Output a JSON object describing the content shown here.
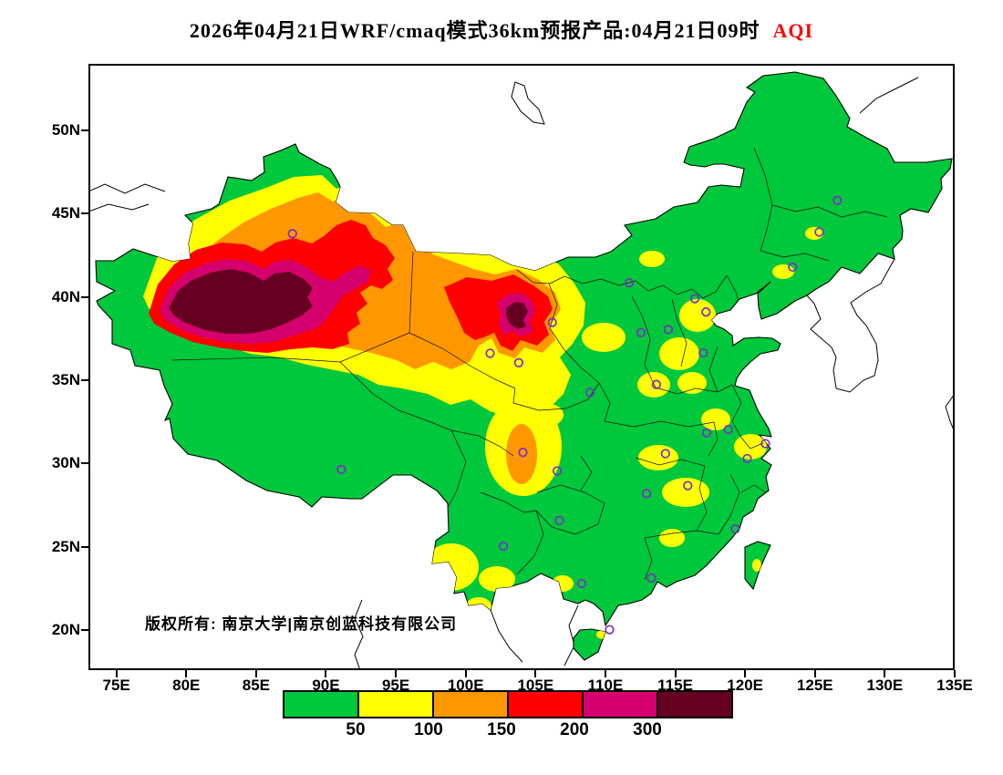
{
  "title": {
    "text": "2026年04月21日WRF/cmaq模式36km预报产品:04月21日09时",
    "suffix": "AQI"
  },
  "axes": {
    "lat_ticks": [
      {
        "label": "50N",
        "value": 50
      },
      {
        "label": "45N",
        "value": 45
      },
      {
        "label": "40N",
        "value": 40
      },
      {
        "label": "35N",
        "value": 35
      },
      {
        "label": "30N",
        "value": 30
      },
      {
        "label": "25N",
        "value": 25
      },
      {
        "label": "20N",
        "value": 20
      }
    ],
    "lon_ticks": [
      {
        "label": "75E",
        "value": 75
      },
      {
        "label": "80E",
        "value": 80
      },
      {
        "label": "85E",
        "value": 85
      },
      {
        "label": "90E",
        "value": 90
      },
      {
        "label": "95E",
        "value": 95
      },
      {
        "label": "100E",
        "value": 100
      },
      {
        "label": "105E",
        "value": 105
      },
      {
        "label": "110E",
        "value": 110
      },
      {
        "label": "115E",
        "value": 115
      },
      {
        "label": "120E",
        "value": 120
      },
      {
        "label": "125E",
        "value": 125
      },
      {
        "label": "130E",
        "value": 130
      },
      {
        "label": "135E",
        "value": 135
      }
    ]
  },
  "map": {
    "copyright": "版权所有: 南京大学|南京创蓝科技有限公司",
    "projection": {
      "lon_min": 73,
      "lon_max": 135,
      "lat_min": 17.6,
      "lat_max": 54
    },
    "city_markers": [
      [
        87.6,
        43.8
      ],
      [
        126.6,
        45.8
      ],
      [
        125.3,
        43.9
      ],
      [
        123.4,
        41.8
      ],
      [
        111.7,
        40.85
      ],
      [
        116.4,
        39.9
      ],
      [
        117.2,
        39.1
      ],
      [
        114.5,
        38.05
      ],
      [
        112.55,
        37.87
      ],
      [
        117.0,
        36.65
      ],
      [
        101.75,
        36.62
      ],
      [
        103.8,
        36.06
      ],
      [
        106.2,
        38.47
      ],
      [
        108.9,
        34.27
      ],
      [
        113.65,
        34.75
      ],
      [
        117.25,
        31.85
      ],
      [
        118.8,
        32.05
      ],
      [
        121.45,
        31.2
      ],
      [
        120.15,
        30.3
      ],
      [
        114.3,
        30.6
      ],
      [
        104.1,
        30.67
      ],
      [
        106.55,
        29.56
      ],
      [
        112.95,
        28.2
      ],
      [
        115.9,
        28.68
      ],
      [
        119.3,
        26.08
      ],
      [
        106.7,
        26.58
      ],
      [
        102.7,
        25.04
      ],
      [
        91.1,
        29.65
      ],
      [
        113.3,
        23.13
      ],
      [
        108.3,
        22.8
      ],
      [
        110.3,
        20.03
      ]
    ]
  },
  "legend": {
    "labels": [
      "50",
      "100",
      "150",
      "200",
      "300"
    ],
    "colors": [
      "#00C83C",
      "#FFFF00",
      "#FF9800",
      "#FF0000",
      "#D5006D",
      "#650021"
    ]
  },
  "colors": {
    "marker": "#7B2FC8",
    "title_accent": "#FF0000",
    "land_base": "#00C83C",
    "outline": "#000000"
  }
}
